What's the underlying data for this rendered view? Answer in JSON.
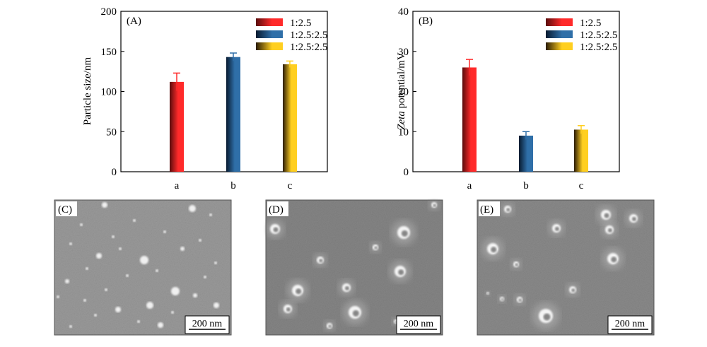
{
  "legend_entries": [
    "1:2.5",
    "1:2.5:2.5",
    "1:2.5:2.5"
  ],
  "series_colors": {
    "a": [
      "#5a0c0c",
      "#ff2a2a"
    ],
    "b": [
      "#081a30",
      "#2f6fa8"
    ],
    "c": [
      "#2a1a05",
      "#ffcf20"
    ]
  },
  "chart_data": [
    {
      "type": "bar",
      "panel": "(A)",
      "ylabel": "Particle size/nm",
      "categories": [
        "a",
        "b",
        "c"
      ],
      "values": [
        112,
        143,
        134
      ],
      "errors": [
        11,
        5,
        4
      ],
      "ylim": [
        0,
        200
      ],
      "yticks": [
        "0",
        "50",
        "100",
        "150",
        "200"
      ],
      "legend": [
        "1:2.5",
        "1:2.5:2.5",
        "1:2.5:2.5"
      ],
      "legend_position": "top-right",
      "grid": false
    },
    {
      "type": "bar",
      "panel": "(B)",
      "ylabel_italic": "Zeta",
      "ylabel_rest": " potential/mV",
      "categories": [
        "a",
        "b",
        "c"
      ],
      "values": [
        26,
        9,
        10.5
      ],
      "errors": [
        2,
        1,
        1
      ],
      "ylim": [
        0,
        40
      ],
      "yticks": [
        "0",
        "10",
        "20",
        "30",
        "40"
      ],
      "legend": [
        "1:2.5",
        "1:2.5:2.5",
        "1:2.5:2.5"
      ],
      "legend_position": "top-right",
      "grid": false
    }
  ],
  "images": [
    {
      "label": "(C)",
      "scale_bar": "200 nm"
    },
    {
      "label": "(D)",
      "scale_bar": "200 nm"
    },
    {
      "label": "(E)",
      "scale_bar": "200 nm"
    }
  ]
}
